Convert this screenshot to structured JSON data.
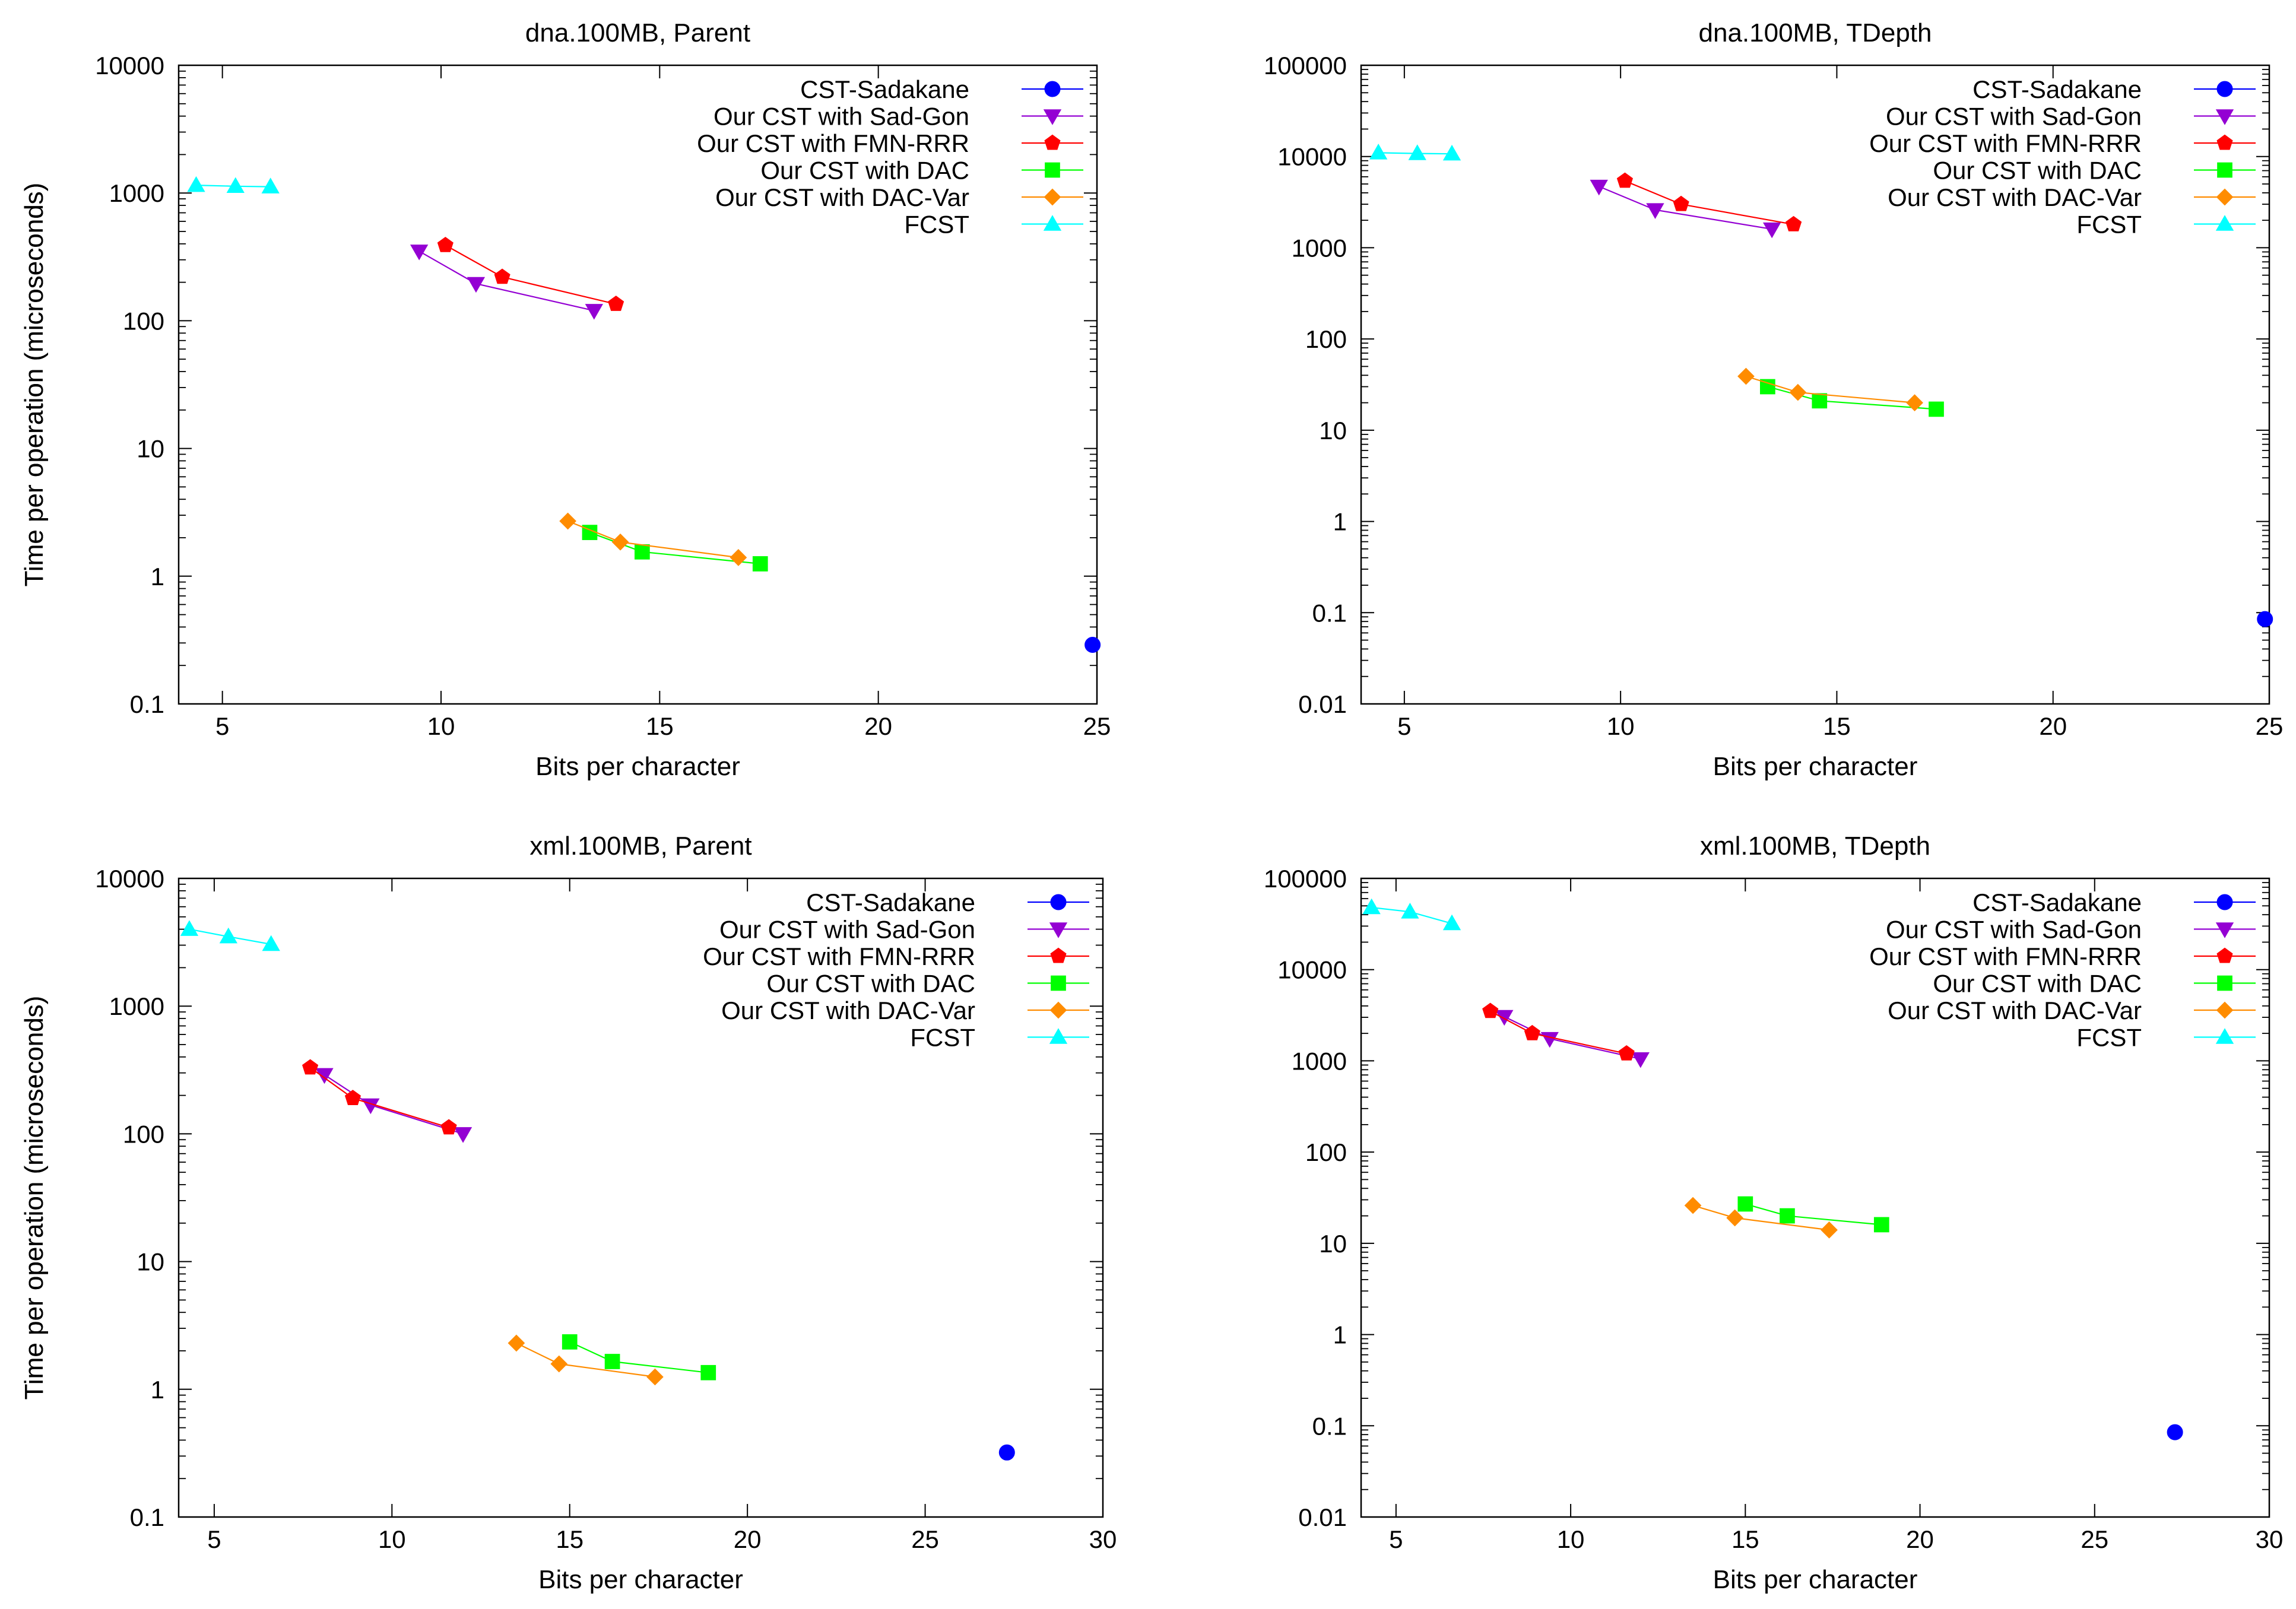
{
  "legend_items": [
    {
      "name": "CST-Sadakane",
      "color": "#0000ff",
      "marker": "circle"
    },
    {
      "name": "Our CST with Sad-Gon",
      "color": "#9400d3",
      "marker": "triangle-down"
    },
    {
      "name": "Our CST with FMN-RRR",
      "color": "#ff0000",
      "marker": "pentagon"
    },
    {
      "name": "Our CST with DAC",
      "color": "#00ff00",
      "marker": "square"
    },
    {
      "name": "Our CST with DAC-Var",
      "color": "#ff8c00",
      "marker": "diamond"
    },
    {
      "name": "FCST",
      "color": "#00ffff",
      "marker": "triangle-up"
    }
  ],
  "chart_data": [
    {
      "type": "line",
      "title": "dna.100MB, Parent",
      "xlabel": "Bits per character",
      "ylabel": "Time per operation (microseconds)",
      "xlim": [
        4,
        25
      ],
      "ylim": [
        0.1,
        10000
      ],
      "yscale": "log",
      "xticks": [
        5,
        10,
        15,
        20,
        25
      ],
      "yticks": [
        0.1,
        1,
        10,
        100,
        1000,
        10000
      ],
      "ytick_labels": [
        "0.1",
        "1",
        "10",
        "100",
        "1000",
        "10000"
      ],
      "legend_position": "top-right",
      "series": [
        {
          "name": "CST-Sadakane",
          "x": [
            24.9
          ],
          "y": [
            0.29
          ]
        },
        {
          "name": "Our CST with Sad-Gon",
          "x": [
            9.5,
            10.8,
            13.5
          ],
          "y": [
            350,
            195,
            120
          ]
        },
        {
          "name": "Our CST with FMN-RRR",
          "x": [
            10.1,
            11.4,
            14.0
          ],
          "y": [
            390,
            220,
            135
          ]
        },
        {
          "name": "Our CST with DAC",
          "x": [
            13.4,
            14.6,
            17.3
          ],
          "y": [
            2.2,
            1.55,
            1.25
          ]
        },
        {
          "name": "Our CST with DAC-Var",
          "x": [
            12.9,
            14.1,
            16.8
          ],
          "y": [
            2.7,
            1.85,
            1.4
          ]
        },
        {
          "name": "FCST",
          "x": [
            4.4,
            5.3,
            6.1
          ],
          "y": [
            1150,
            1130,
            1120
          ]
        }
      ]
    },
    {
      "type": "line",
      "title": "dna.100MB, TDepth",
      "xlabel": "Bits per character",
      "ylabel": "Time per operation (microseconds)",
      "xlim": [
        4,
        25
      ],
      "ylim": [
        0.01,
        100000
      ],
      "yscale": "log",
      "xticks": [
        5,
        10,
        15,
        20,
        25
      ],
      "yticks": [
        0.01,
        0.1,
        1,
        10,
        100,
        1000,
        10000,
        100000
      ],
      "ytick_labels": [
        "0.01",
        "0.1",
        "1",
        "10",
        "100",
        "1000",
        "10000",
        "100000"
      ],
      "legend_position": "top-right",
      "series": [
        {
          "name": "CST-Sadakane",
          "x": [
            24.9
          ],
          "y": [
            0.085
          ]
        },
        {
          "name": "Our CST with Sad-Gon",
          "x": [
            9.5,
            10.8,
            13.5
          ],
          "y": [
            4700,
            2600,
            1600
          ]
        },
        {
          "name": "Our CST with FMN-RRR",
          "x": [
            10.1,
            11.4,
            14.0
          ],
          "y": [
            5400,
            3000,
            1800
          ]
        },
        {
          "name": "Our CST with DAC",
          "x": [
            13.4,
            14.6,
            17.3
          ],
          "y": [
            30,
            21,
            17
          ]
        },
        {
          "name": "Our CST with DAC-Var",
          "x": [
            12.9,
            14.1,
            16.8
          ],
          "y": [
            39,
            26,
            20
          ]
        },
        {
          "name": "FCST",
          "x": [
            4.4,
            5.3,
            6.1
          ],
          "y": [
            11000,
            10800,
            10700
          ]
        }
      ]
    },
    {
      "type": "line",
      "title": "xml.100MB, Parent",
      "xlabel": "Bits per character",
      "ylabel": "Time per operation (microseconds)",
      "xlim": [
        4,
        30
      ],
      "ylim": [
        0.1,
        10000
      ],
      "yscale": "log",
      "xticks": [
        5,
        10,
        15,
        20,
        25,
        30
      ],
      "yticks": [
        0.1,
        1,
        10,
        100,
        1000,
        10000
      ],
      "ytick_labels": [
        "0.1",
        "1",
        "10",
        "100",
        "1000",
        "10000"
      ],
      "legend_position": "top-right",
      "series": [
        {
          "name": "CST-Sadakane",
          "x": [
            27.3
          ],
          "y": [
            0.32
          ]
        },
        {
          "name": "Our CST with Sad-Gon",
          "x": [
            8.1,
            9.4,
            12.0
          ],
          "y": [
            290,
            168,
            100
          ]
        },
        {
          "name": "Our CST with FMN-RRR",
          "x": [
            7.7,
            8.9,
            11.6
          ],
          "y": [
            330,
            190,
            112
          ]
        },
        {
          "name": "Our CST with DAC",
          "x": [
            15.0,
            16.2,
            18.9
          ],
          "y": [
            2.35,
            1.65,
            1.35
          ]
        },
        {
          "name": "Our CST with DAC-Var",
          "x": [
            13.5,
            14.7,
            17.4
          ],
          "y": [
            2.3,
            1.58,
            1.25
          ]
        },
        {
          "name": "FCST",
          "x": [
            4.3,
            5.4,
            6.6
          ],
          "y": [
            4000,
            3500,
            3050
          ]
        }
      ]
    },
    {
      "type": "line",
      "title": "xml.100MB, TDepth",
      "xlabel": "Bits per character",
      "ylabel": "Time per operation (microseconds)",
      "xlim": [
        4,
        30
      ],
      "ylim": [
        0.01,
        100000
      ],
      "yscale": "log",
      "xticks": [
        5,
        10,
        15,
        20,
        25,
        30
      ],
      "yticks": [
        0.01,
        0.1,
        1,
        10,
        100,
        1000,
        10000,
        100000
      ],
      "ytick_labels": [
        "0.01",
        "0.1",
        "1",
        "10",
        "100",
        "1000",
        "10000",
        "100000"
      ],
      "legend_position": "top-right",
      "series": [
        {
          "name": "CST-Sadakane",
          "x": [
            27.3
          ],
          "y": [
            0.085
          ]
        },
        {
          "name": "Our CST with Sad-Gon",
          "x": [
            8.1,
            9.4,
            12.0
          ],
          "y": [
            3050,
            1750,
            1050
          ]
        },
        {
          "name": "Our CST with FMN-RRR",
          "x": [
            7.7,
            8.9,
            11.6
          ],
          "y": [
            3500,
            2000,
            1200
          ]
        },
        {
          "name": "Our CST with DAC",
          "x": [
            15.0,
            16.2,
            18.9
          ],
          "y": [
            27,
            20,
            16
          ]
        },
        {
          "name": "Our CST with DAC-Var",
          "x": [
            13.5,
            14.7,
            17.4
          ],
          "y": [
            26,
            19,
            14
          ]
        },
        {
          "name": "FCST",
          "x": [
            4.3,
            5.4,
            6.6
          ],
          "y": [
            48000,
            43000,
            32000
          ]
        }
      ]
    }
  ]
}
